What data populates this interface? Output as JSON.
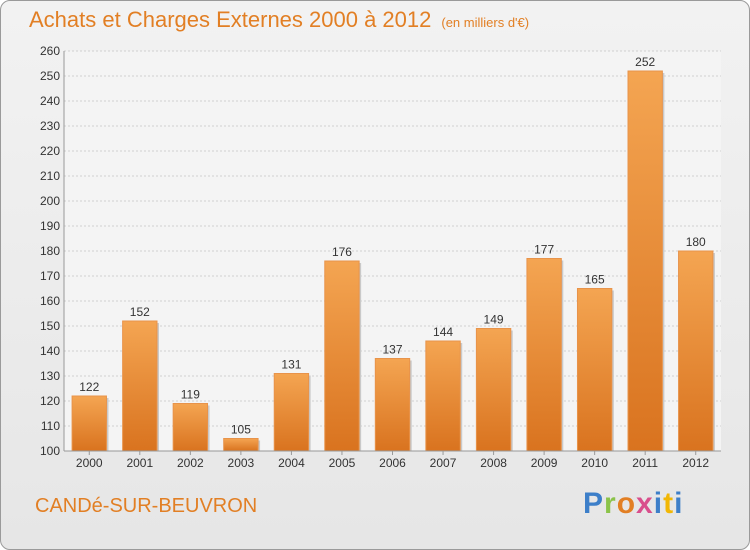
{
  "title": "Achats et Charges Externes 2000 à 2012",
  "unit": "(en milliers d'€)",
  "place": "CANDé-SUR-BEUVRON",
  "logo_text": "Proxiti",
  "colors": {
    "accent": "#e27f24",
    "bar_light": "#f4a552",
    "bar_dark": "#d9731f"
  },
  "chart_data": {
    "type": "bar",
    "categories": [
      "2000",
      "2001",
      "2002",
      "2003",
      "2004",
      "2005",
      "2006",
      "2007",
      "2008",
      "2009",
      "2010",
      "2011",
      "2012"
    ],
    "values": [
      122,
      152,
      119,
      105,
      131,
      176,
      137,
      144,
      149,
      177,
      165,
      252,
      180
    ],
    "ylim": [
      100,
      260
    ],
    "yticks": [
      100,
      110,
      120,
      130,
      140,
      150,
      160,
      170,
      180,
      190,
      200,
      210,
      220,
      230,
      240,
      250,
      260
    ],
    "grid": true
  }
}
